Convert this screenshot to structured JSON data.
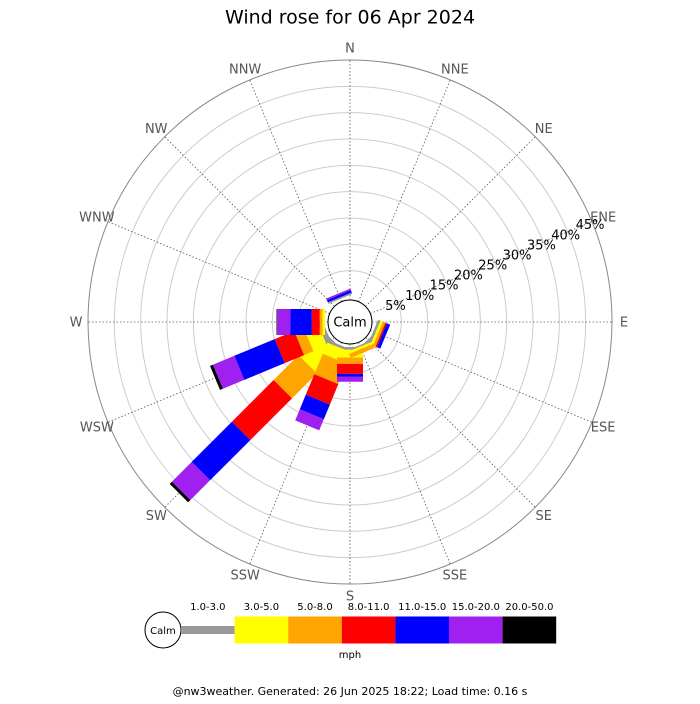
{
  "chart_data": {
    "type": "windrose",
    "title": "Wind rose for 06 Apr 2024",
    "directions": [
      "N",
      "NNE",
      "NE",
      "ENE",
      "E",
      "ESE",
      "SE",
      "SSE",
      "S",
      "SSW",
      "SW",
      "WSW",
      "W",
      "WNW",
      "NW",
      "NNW"
    ],
    "calm_label": "Calm",
    "unit": "mph",
    "rlim": [
      0,
      45
    ],
    "rticks": [
      {
        "value": 5,
        "label": "5%"
      },
      {
        "value": 10,
        "label": "10%"
      },
      {
        "value": 15,
        "label": "15%"
      },
      {
        "value": 20,
        "label": "20%"
      },
      {
        "value": 25,
        "label": "25%"
      },
      {
        "value": 30,
        "label": "30%"
      },
      {
        "value": 35,
        "label": "35%"
      },
      {
        "value": 40,
        "label": "40%"
      },
      {
        "value": 45,
        "label": "45%"
      }
    ],
    "series": [
      {
        "name": "1.0-3.0",
        "color": "#999999",
        "values": [
          0,
          0,
          0,
          0,
          0,
          0.5,
          0.3,
          0.3,
          0.5,
          0.5,
          1.9,
          1.0,
          0,
          0,
          0,
          0.3
        ]
      },
      {
        "name": "3.0-5.0",
        "color": "#ffff00",
        "values": [
          0,
          0,
          0,
          0,
          0,
          0.5,
          0,
          0.5,
          1.5,
          2.3,
          4.7,
          2.8,
          0.5,
          0,
          0,
          0
        ]
      },
      {
        "name": "5.0-8.0",
        "color": "#ffa500",
        "values": [
          0,
          0,
          0,
          0,
          0,
          0.5,
          0,
          0.8,
          1.2,
          4.2,
          6.7,
          1.9,
          0.5,
          0,
          0,
          0
        ]
      },
      {
        "name": "8.0-11.0",
        "color": "#ff0000",
        "values": [
          0,
          0,
          0,
          0,
          0,
          0.3,
          0,
          0,
          1.9,
          4.2,
          11.2,
          4.0,
          1.5,
          0,
          0,
          0
        ]
      },
      {
        "name": "11.0-15.0",
        "color": "#0000ff",
        "values": [
          0,
          0,
          0,
          0,
          0,
          0.7,
          0,
          0,
          0.5,
          3.0,
          10.8,
          8.3,
          4.1,
          0,
          0,
          0.5
        ]
      },
      {
        "name": "15.0-20.0",
        "color": "#a020f0",
        "values": [
          0,
          0,
          0,
          0,
          0,
          0,
          0,
          0,
          1.0,
          2.3,
          5.3,
          4.4,
          2.5,
          0,
          0,
          0.3
        ]
      },
      {
        "name": "20.0-50.0",
        "color": "#000000",
        "values": [
          0,
          0,
          0,
          0,
          0,
          0,
          0,
          0,
          0,
          0,
          0.6,
          0.6,
          0.1,
          0,
          0,
          0
        ]
      }
    ],
    "footer": "@nw3weather. Generated: 26 Jun 2025 18:22; Load time: 0.16 s"
  }
}
